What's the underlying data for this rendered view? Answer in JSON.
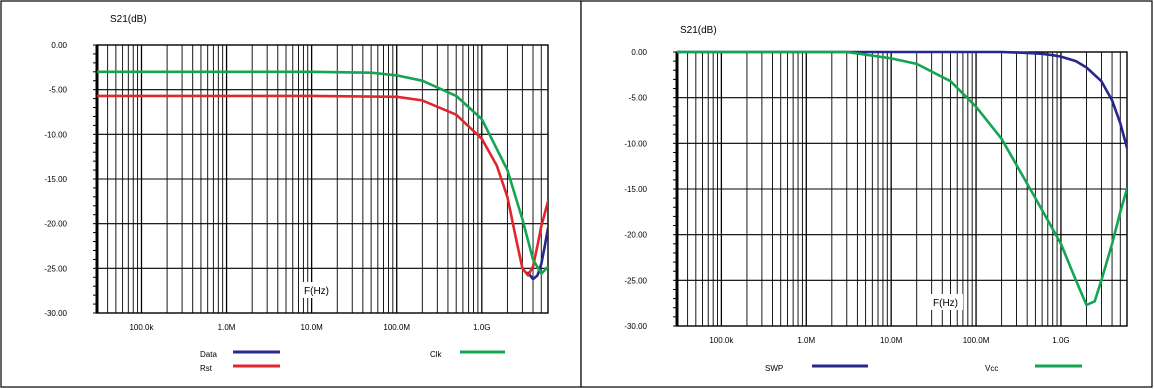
{
  "colors": {
    "blue": "#27278f",
    "red": "#e0272f",
    "green": "#13a552",
    "frame": "#000000"
  },
  "chart_data": [
    {
      "type": "line",
      "title": "",
      "ylabel": "S21(dB)",
      "xlabel": "F(Hz)",
      "x_scale": "log",
      "xlim": [
        30000,
        6000000000
      ],
      "ylim": [
        -30,
        0
      ],
      "yticks": [
        0,
        -5,
        -10,
        -15,
        -20,
        -25,
        -30
      ],
      "ytick_labels": [
        "0.00",
        "-5.00",
        "-10.00",
        "-15.00",
        "-20.00",
        "-25.00",
        "-30.00"
      ],
      "xticks": [
        100000,
        1000000,
        10000000,
        100000000,
        1000000000
      ],
      "xtick_labels": [
        "100.0k",
        "1.0M",
        "10.0M",
        "100.0M",
        "1.0G"
      ],
      "grid": true,
      "legend": "bottom",
      "series": [
        {
          "name": "Data",
          "color": "blue",
          "x": [
            3500000000.0,
            4000000000.0,
            4500000000.0,
            5000000000.0,
            5500000000.0,
            6000000000.0
          ],
          "y": [
            -25.5,
            -26.2,
            -25.8,
            -24.5,
            -22.5,
            -20.5
          ]
        },
        {
          "name": "Rst",
          "color": "red",
          "x": [
            30000.0,
            100000.0,
            1000000.0,
            10000000.0,
            100000000.0,
            200000000.0,
            500000000.0,
            1000000000.0,
            1500000000.0,
            2000000000.0,
            2500000000.0,
            3000000000.0,
            3500000000.0,
            4000000000.0,
            4500000000.0,
            5000000000.0,
            6000000000.0
          ],
          "y": [
            -5.7,
            -5.7,
            -5.7,
            -5.7,
            -5.8,
            -6.2,
            -7.8,
            -10.5,
            -13.5,
            -17.0,
            -21.5,
            -25.0,
            -25.8,
            -24.8,
            -22.5,
            -20.3,
            -17.5
          ]
        },
        {
          "name": "Clk",
          "color": "green",
          "x": [
            30000.0,
            100000.0,
            1000000.0,
            10000000.0,
            50000000.0,
            100000000.0,
            200000000.0,
            500000000.0,
            1000000000.0,
            2000000000.0,
            3000000000.0,
            4000000000.0,
            5000000000.0,
            5500000000.0,
            6000000000.0
          ],
          "y": [
            -3.0,
            -3.0,
            -3.0,
            -3.0,
            -3.1,
            -3.4,
            -4.0,
            -5.7,
            -8.3,
            -14.0,
            -19.5,
            -24.0,
            -25.6,
            -25.2,
            -24.8
          ]
        }
      ]
    },
    {
      "type": "line",
      "title": "",
      "ylabel": "S21(dB)",
      "xlabel": "F(Hz)",
      "x_scale": "log",
      "xlim": [
        30000,
        6000000000
      ],
      "ylim": [
        -30,
        0
      ],
      "yticks": [
        0,
        -5,
        -10,
        -15,
        -20,
        -25,
        -30
      ],
      "ytick_labels": [
        "0.00",
        "-5.00",
        "-10.00",
        "-15.00",
        "-20.00",
        "-25.00",
        "-30.00"
      ],
      "xticks": [
        100000,
        1000000,
        10000000,
        100000000,
        1000000000
      ],
      "xtick_labels": [
        "100.0k",
        "1.0M",
        "10.0M",
        "100.0M",
        "1.0G"
      ],
      "grid": true,
      "legend": "bottom",
      "series": [
        {
          "name": "SWP",
          "color": "blue",
          "x": [
            30000.0,
            60000.0,
            200000000.0,
            400000000.0,
            600000000.0,
            800000000.0,
            1000000000.0,
            1500000000.0,
            2000000000.0,
            3000000000.0,
            4000000000.0,
            5000000000.0,
            6000000000.0
          ],
          "y": [
            0,
            0,
            0,
            -0.1,
            -0.2,
            -0.35,
            -0.5,
            -1.0,
            -1.7,
            -3.2,
            -5.3,
            -7.8,
            -10.5
          ]
        },
        {
          "name": "Vcc",
          "color": "green",
          "x": [
            30000.0,
            60000.0,
            3000000.0,
            5000000.0,
            10000000.0,
            20000000.0,
            50000000.0,
            100000000.0,
            200000000.0,
            500000000.0,
            1000000000.0,
            1500000000.0,
            2000000000.0,
            2500000000.0,
            3000000000.0,
            4000000000.0,
            5000000000.0,
            6000000000.0
          ],
          "y": [
            0,
            0,
            0,
            -0.3,
            -0.7,
            -1.3,
            -3.2,
            -6.0,
            -9.5,
            -16.0,
            -21.0,
            -25.0,
            -27.7,
            -27.3,
            -25.0,
            -21.0,
            -17.5,
            -15.0
          ]
        }
      ]
    }
  ]
}
